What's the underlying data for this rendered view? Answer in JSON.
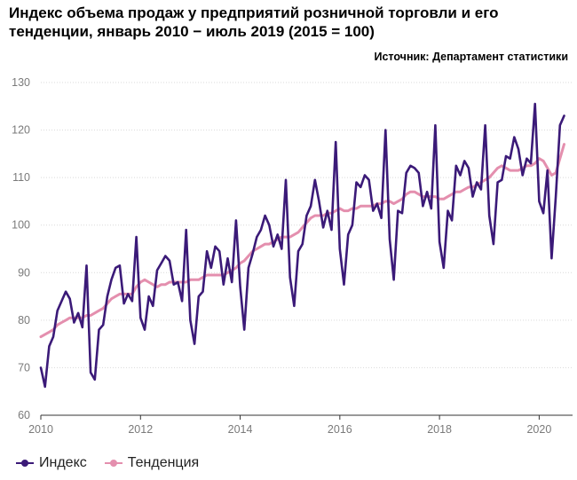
{
  "header": {
    "title": "Индекс объема продаж у предприятий розничной торговли и его тенденции, январь 2010 − июль 2019 (2015 = 100)",
    "source": "Источник: Департамент статистики"
  },
  "colors": {
    "index": "#3b1a78",
    "trend": "#e48fae",
    "grid": "#d9d9d9",
    "axis": "#333333",
    "tick_text": "#7a7a7a"
  },
  "legend": {
    "items": [
      {
        "label": "Индекс",
        "series": "index"
      },
      {
        "label": "Тенденция",
        "series": "trend"
      }
    ]
  },
  "chart_data": {
    "type": "line",
    "title": "Индекс объема продаж у предприятий розничной торговли и его тенденции, январь 2010 − июль 2019 (2015 = 100)",
    "xlabel": "",
    "ylabel": "",
    "x_start": "2010-01",
    "frequency": "monthly",
    "xlim": [
      2010,
      2020.67
    ],
    "ylim": [
      60,
      130
    ],
    "yticks": [
      60,
      70,
      80,
      90,
      100,
      110,
      120,
      130
    ],
    "xticks": [
      2010,
      2012,
      2014,
      2016,
      2018,
      2020
    ],
    "grid": "horizontal",
    "legend_position": "bottom-left",
    "series": [
      {
        "name": "Индекс",
        "key": "index",
        "values": [
          70,
          66,
          74.5,
          76.5,
          82,
          84,
          86,
          84.5,
          79.5,
          81.5,
          78.5,
          91.5,
          69,
          67.5,
          78,
          79,
          85,
          88.5,
          91,
          91.5,
          83.5,
          85.5,
          84,
          97.5,
          80.5,
          78,
          85,
          83,
          90.5,
          92,
          93.5,
          92.5,
          87.5,
          88,
          84,
          99,
          80,
          75,
          85,
          86,
          94.5,
          91,
          95.5,
          94.5,
          87.5,
          93,
          88,
          101,
          87,
          78,
          91,
          94,
          97.5,
          99,
          102,
          100,
          95.5,
          98,
          95,
          109.5,
          89,
          83,
          94.5,
          96,
          102,
          104,
          109.5,
          105,
          99.5,
          103,
          99,
          117.5,
          95,
          87.5,
          98,
          100,
          109,
          108,
          110.5,
          109.5,
          103,
          104.5,
          101.5,
          120,
          97,
          88.5,
          103,
          102.5,
          111,
          112.5,
          112,
          111,
          104,
          107,
          103.5,
          121,
          96.5,
          91,
          103,
          101,
          112.5,
          110.5,
          113.5,
          112,
          106,
          109,
          107.5,
          121,
          102,
          96,
          109,
          109.5,
          114.5,
          114,
          118.5,
          116,
          110.5,
          114,
          113,
          125.5,
          105,
          102.5,
          111.5,
          93,
          106,
          121,
          123
        ]
      },
      {
        "name": "Тенденция",
        "key": "trend",
        "values": [
          76.5,
          77,
          77.5,
          78,
          79,
          79.5,
          80,
          80.5,
          80.5,
          80.5,
          80.5,
          81,
          81,
          81.5,
          82,
          82.5,
          83.5,
          84.5,
          85,
          85.5,
          85.5,
          85.5,
          85.5,
          87,
          88,
          88.5,
          88,
          87.5,
          87,
          87.5,
          87.5,
          88,
          88,
          88,
          88,
          88,
          88.5,
          88.5,
          88.5,
          89,
          89.5,
          89.5,
          89.5,
          89.5,
          89.5,
          90,
          90.5,
          91,
          92,
          92.5,
          93.5,
          94.5,
          95,
          95.5,
          96,
          96,
          96.5,
          97,
          97.5,
          97.5,
          97.5,
          98,
          98.5,
          99.5,
          100.5,
          101.5,
          102,
          102,
          102,
          102.5,
          102.5,
          103,
          103.5,
          103,
          103,
          103.5,
          103.5,
          104,
          104,
          104,
          104,
          104.5,
          104.5,
          105,
          105,
          104.5,
          105,
          105.5,
          106.5,
          107,
          107,
          106.5,
          106,
          106,
          106,
          106,
          105.5,
          105.5,
          106,
          106.5,
          107,
          107,
          107.5,
          108,
          108,
          108.5,
          109,
          109.5,
          110,
          111,
          112,
          112.5,
          112,
          111.5,
          111.5,
          111.5,
          112,
          112.5,
          112.5,
          113,
          114,
          113.5,
          112,
          110.5,
          111,
          114,
          117
        ]
      }
    ]
  }
}
